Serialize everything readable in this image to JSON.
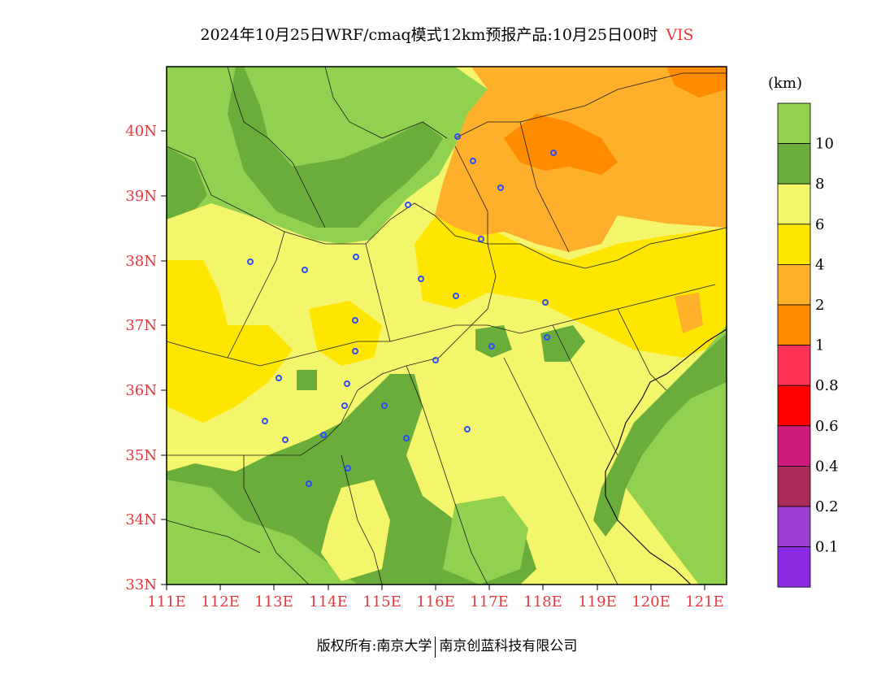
{
  "title": {
    "text": "2024年10月25日WRF/cmaq模式12km预报产品:10月25日00时",
    "variable": "VIS"
  },
  "colorbar": {
    "unit": "(km)",
    "bins": [
      {
        "color": "#92d050",
        "label": "10"
      },
      {
        "color": "#6aad3a",
        "label": "8"
      },
      {
        "color": "#f3f56a",
        "label": "6"
      },
      {
        "color": "#ffe600",
        "label": "4"
      },
      {
        "color": "#ffb02a",
        "label": "2"
      },
      {
        "color": "#ff8c00",
        "label": "1"
      },
      {
        "color": "#ff3355",
        "label": "0.8"
      },
      {
        "color": "#ff0000",
        "label": "0.6"
      },
      {
        "color": "#cc1b7a",
        "label": "0.4"
      },
      {
        "color": "#aa2b5a",
        "label": "0.2"
      },
      {
        "color": "#9b3fd0",
        "label": "0.1"
      },
      {
        "color": "#8a2be2",
        "label": ""
      }
    ]
  },
  "axes": {
    "lat_labels": [
      "40N",
      "39N",
      "38N",
      "37N",
      "36N",
      "35N",
      "34N",
      "33N"
    ],
    "lon_labels": [
      "111E",
      "112E",
      "113E",
      "114E",
      "115E",
      "116E",
      "117E",
      "118E",
      "119E",
      "120E",
      "121E"
    ],
    "lat_range": [
      33,
      41
    ],
    "lon_range": [
      111,
      121.4
    ]
  },
  "regions": [
    {
      "level": "green_dark",
      "name": "northwest-dark-green"
    },
    {
      "level": "yellow",
      "name": "central-yellow-band"
    },
    {
      "level": "orange",
      "name": "northeast-orange"
    },
    {
      "level": "orange_dark",
      "name": "beijing-dark-orange"
    },
    {
      "level": "green_dark",
      "name": "southwest-dark-green"
    },
    {
      "level": "green",
      "name": "east-sea-green"
    }
  ],
  "colors": {
    "green": "#92d050",
    "green_dark": "#6aad3a",
    "yellow_light": "#f3f56a",
    "yellow": "#ffe600",
    "orange": "#ffb02a",
    "orange_dark": "#ff8c00",
    "station_marker": "#2b4cff",
    "axis_label": "#e8383d"
  },
  "footer": {
    "left": "版权所有:南京大学",
    "right": "南京创蓝科技有限公司"
  }
}
